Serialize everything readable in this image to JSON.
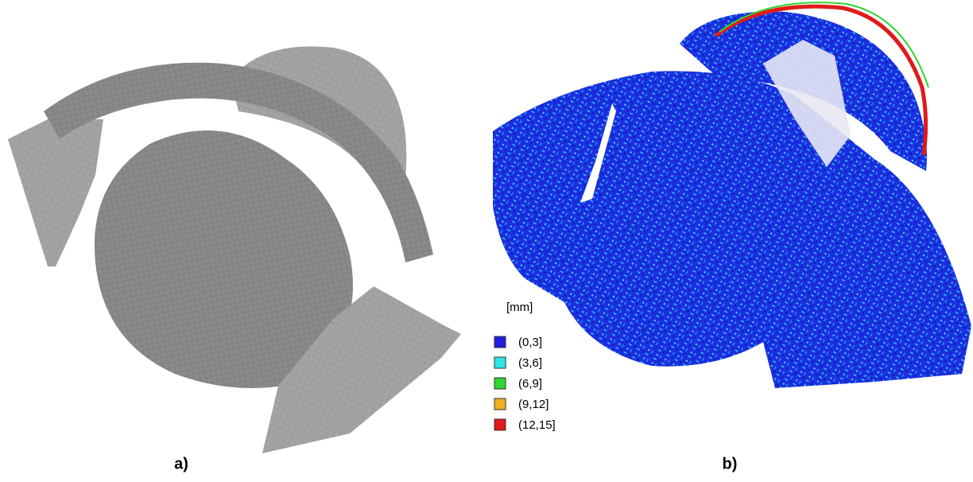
{
  "panels": [
    {
      "label": "a)"
    },
    {
      "label": "b)"
    }
  ],
  "legend": {
    "title": "[mm]",
    "items": [
      {
        "label": "(0,3]",
        "color": "#1f1fe0"
      },
      {
        "label": "(3,6]",
        "color": "#2ee6e6"
      },
      {
        "label": "(6,9]",
        "color": "#2ed62e"
      },
      {
        "label": "(9,12]",
        "color": "#f0b020"
      },
      {
        "label": "(12,15]",
        "color": "#e01a1a"
      }
    ]
  }
}
